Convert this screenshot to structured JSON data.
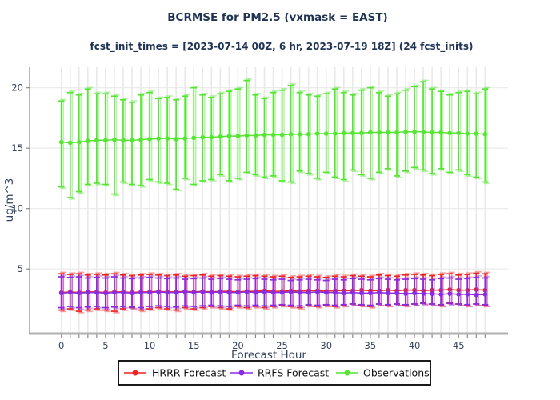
{
  "figure": {
    "title": "BCRMSE for PM2.5 (vxmask = EAST)",
    "subtitle": "fcst_init_times = [2023-07-14 00Z, 6 hr, 2023-07-19 18Z] (24 fcst_inits)"
  },
  "chart_data": {
    "type": "line",
    "title": "BCRMSE for PM2.5 (vxmask = EAST)",
    "subtitle": "fcst_init_times = [2023-07-14 00Z, 6 hr, 2023-07-19 18Z] (24 fcst_inits)",
    "xlabel": "Forecast Hour",
    "ylabel": "ug/m^3",
    "xlim": [
      -3.6,
      50.6
    ],
    "ylim": [
      -0.35,
      21.7
    ],
    "xticks": [
      0,
      5,
      10,
      15,
      20,
      25,
      30,
      35,
      40,
      45
    ],
    "yticks": [
      5,
      10,
      15,
      20
    ],
    "grid": true,
    "error_bars": true,
    "legend_position": "bottom-center",
    "grid_color": "#e9e9e9",
    "spine_color": "#b0b0b0",
    "tick_color": "#8a8a8a",
    "x": [
      0,
      1,
      2,
      3,
      4,
      5,
      6,
      7,
      8,
      9,
      10,
      11,
      12,
      13,
      14,
      15,
      16,
      17,
      18,
      19,
      20,
      21,
      22,
      23,
      24,
      25,
      26,
      27,
      28,
      29,
      30,
      31,
      32,
      33,
      34,
      35,
      36,
      37,
      38,
      39,
      40,
      41,
      42,
      43,
      44,
      45,
      46,
      47,
      48
    ],
    "series": [
      {
        "name": "HRRR Forecast",
        "color": "#ee2222",
        "values": [
          3.05,
          3.1,
          3.05,
          3.1,
          3.1,
          3.05,
          3.1,
          3.1,
          3.05,
          3.1,
          3.1,
          3.15,
          3.1,
          3.1,
          3.15,
          3.1,
          3.15,
          3.1,
          3.15,
          3.15,
          3.1,
          3.15,
          3.15,
          3.2,
          3.15,
          3.15,
          3.2,
          3.15,
          3.2,
          3.2,
          3.15,
          3.2,
          3.2,
          3.2,
          3.25,
          3.2,
          3.2,
          3.25,
          3.2,
          3.25,
          3.25,
          3.2,
          3.25,
          3.25,
          3.3,
          3.25,
          3.25,
          3.3,
          3.25
        ],
        "err_lo": [
          1.6,
          1.7,
          1.5,
          1.6,
          1.7,
          1.6,
          1.5,
          1.7,
          1.8,
          1.6,
          1.7,
          1.8,
          1.7,
          1.6,
          1.8,
          1.7,
          1.8,
          1.9,
          1.8,
          1.7,
          1.9,
          1.8,
          1.9,
          1.8,
          1.9,
          2.0,
          1.9,
          1.8,
          2.0,
          1.9,
          2.0,
          1.9,
          2.0,
          2.1,
          2.0,
          1.9,
          2.1,
          2.0,
          2.1,
          2.0,
          2.1,
          2.2,
          2.1,
          2.0,
          2.2,
          2.1,
          2.0,
          2.1,
          2.0
        ],
        "err_hi": [
          4.6,
          4.55,
          4.6,
          4.5,
          4.55,
          4.5,
          4.6,
          4.5,
          4.45,
          4.5,
          4.55,
          4.5,
          4.45,
          4.5,
          4.4,
          4.45,
          4.5,
          4.4,
          4.45,
          4.4,
          4.35,
          4.4,
          4.45,
          4.4,
          4.35,
          4.4,
          4.3,
          4.35,
          4.4,
          4.35,
          4.3,
          4.4,
          4.35,
          4.45,
          4.4,
          4.35,
          4.5,
          4.45,
          4.4,
          4.5,
          4.55,
          4.5,
          4.45,
          4.55,
          4.6,
          4.5,
          4.55,
          4.65,
          4.6
        ]
      },
      {
        "name": "RRFS Forecast",
        "color": "#8a2be2",
        "values": [
          3.0,
          3.05,
          3.0,
          3.05,
          3.05,
          3.0,
          3.05,
          3.05,
          3.0,
          3.05,
          3.05,
          3.1,
          3.05,
          3.05,
          3.1,
          3.05,
          3.1,
          3.05,
          3.1,
          3.05,
          3.05,
          3.1,
          3.05,
          3.1,
          3.05,
          3.05,
          3.1,
          3.05,
          3.05,
          3.1,
          3.05,
          3.05,
          3.0,
          3.05,
          3.0,
          3.0,
          3.05,
          3.0,
          3.0,
          2.95,
          3.0,
          2.95,
          2.95,
          2.9,
          2.95,
          2.9,
          2.9,
          2.85,
          2.9
        ],
        "err_lo": [
          1.8,
          1.9,
          1.8,
          1.85,
          1.9,
          1.8,
          1.85,
          1.9,
          1.85,
          1.8,
          1.9,
          1.95,
          1.9,
          1.85,
          1.95,
          1.9,
          1.95,
          2.0,
          1.95,
          1.9,
          2.0,
          1.95,
          2.0,
          1.95,
          2.0,
          2.05,
          2.0,
          1.95,
          2.05,
          2.0,
          2.05,
          2.0,
          2.05,
          2.1,
          2.05,
          2.0,
          2.1,
          2.05,
          2.1,
          2.05,
          2.1,
          2.15,
          2.1,
          2.05,
          2.15,
          2.1,
          2.05,
          2.1,
          2.05
        ],
        "err_hi": [
          4.35,
          4.3,
          4.35,
          4.25,
          4.3,
          4.25,
          4.35,
          4.25,
          4.2,
          4.25,
          4.3,
          4.25,
          4.2,
          4.25,
          4.15,
          4.2,
          4.25,
          4.15,
          4.2,
          4.15,
          4.1,
          4.15,
          4.2,
          4.15,
          4.1,
          4.15,
          4.05,
          4.1,
          4.15,
          4.1,
          4.05,
          4.15,
          4.1,
          4.2,
          4.15,
          4.1,
          4.2,
          4.15,
          4.1,
          4.15,
          4.2,
          4.15,
          4.1,
          4.2,
          4.25,
          4.15,
          4.2,
          4.3,
          4.25
        ]
      },
      {
        "name": "Observations",
        "color": "#55e532",
        "values": [
          15.5,
          15.45,
          15.5,
          15.6,
          15.65,
          15.65,
          15.7,
          15.65,
          15.65,
          15.7,
          15.75,
          15.8,
          15.8,
          15.75,
          15.8,
          15.85,
          15.9,
          15.9,
          15.95,
          16.0,
          16.0,
          16.05,
          16.05,
          16.1,
          16.1,
          16.1,
          16.15,
          16.15,
          16.15,
          16.2,
          16.2,
          16.2,
          16.25,
          16.25,
          16.25,
          16.3,
          16.3,
          16.3,
          16.3,
          16.35,
          16.35,
          16.35,
          16.3,
          16.3,
          16.25,
          16.25,
          16.2,
          16.2,
          16.15
        ],
        "err_lo": [
          11.8,
          10.9,
          11.4,
          12.0,
          12.1,
          12.0,
          11.2,
          12.2,
          12.0,
          11.9,
          12.4,
          12.2,
          12.1,
          11.6,
          12.5,
          12.0,
          12.3,
          12.4,
          12.8,
          12.3,
          12.5,
          13.0,
          12.8,
          12.6,
          12.7,
          12.3,
          12.2,
          13.1,
          12.9,
          12.5,
          13.0,
          12.6,
          12.4,
          13.2,
          12.8,
          12.5,
          13.0,
          13.3,
          12.7,
          13.1,
          13.4,
          13.2,
          12.9,
          13.3,
          13.0,
          13.2,
          12.8,
          12.6,
          12.2
        ],
        "err_hi": [
          18.9,
          19.6,
          19.4,
          19.9,
          19.5,
          19.5,
          19.3,
          19.0,
          18.8,
          19.4,
          19.6,
          19.1,
          19.2,
          19.0,
          19.3,
          20.0,
          19.4,
          19.2,
          19.5,
          19.7,
          19.9,
          20.6,
          19.4,
          19.1,
          19.6,
          19.8,
          20.2,
          19.6,
          19.4,
          19.3,
          19.5,
          19.9,
          19.6,
          19.4,
          19.8,
          20.0,
          19.6,
          19.3,
          19.5,
          19.8,
          20.1,
          20.5,
          19.9,
          19.7,
          19.4,
          19.6,
          19.7,
          19.5,
          19.9
        ]
      }
    ]
  }
}
